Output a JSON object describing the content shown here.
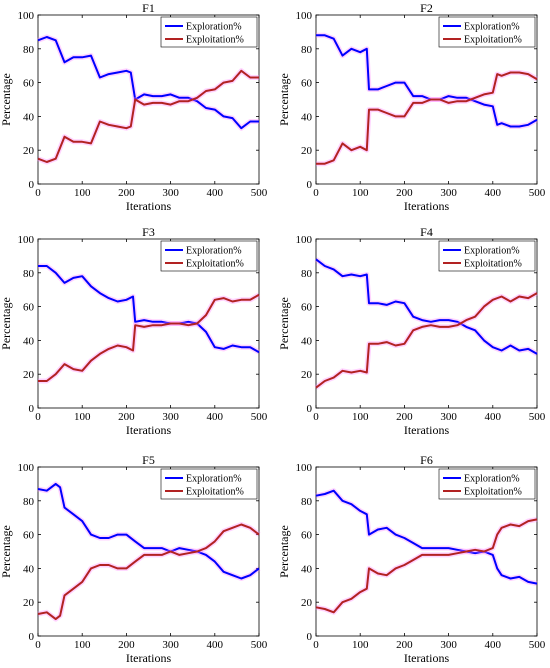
{
  "figure": {
    "colors": {
      "exploration": "#0000ff",
      "exploitation": "#b22222",
      "glow": "#ff80ff"
    }
  },
  "chart_data": [
    {
      "type": "line",
      "title": "F1",
      "xlabel": "Iterations",
      "ylabel": "Percentage",
      "xlim": [
        0,
        500
      ],
      "ylim": [
        0,
        100
      ],
      "xticks": [
        0,
        100,
        200,
        300,
        400,
        500
      ],
      "yticks": [
        0,
        20,
        40,
        60,
        80,
        100
      ],
      "legend": "top-right",
      "x": [
        0,
        20,
        40,
        60,
        80,
        100,
        120,
        140,
        160,
        180,
        200,
        210,
        220,
        240,
        260,
        280,
        300,
        320,
        340,
        360,
        380,
        400,
        420,
        440,
        460,
        480,
        500
      ],
      "series": [
        {
          "name": "Exploration%",
          "values": [
            85,
            87,
            85,
            72,
            75,
            75,
            76,
            63,
            65,
            66,
            67,
            66,
            50,
            53,
            52,
            52,
            53,
            51,
            51,
            49,
            45,
            44,
            40,
            39,
            33,
            37,
            37
          ]
        },
        {
          "name": "Exploitation%",
          "values": [
            15,
            13,
            15,
            28,
            25,
            25,
            24,
            37,
            35,
            34,
            33,
            34,
            50,
            47,
            48,
            48,
            47,
            49,
            49,
            51,
            55,
            56,
            60,
            61,
            67,
            63,
            63
          ]
        }
      ]
    },
    {
      "type": "line",
      "title": "F2",
      "xlabel": "Iterations",
      "ylabel": "Percentage",
      "xlim": [
        0,
        500
      ],
      "ylim": [
        0,
        100
      ],
      "xticks": [
        0,
        100,
        200,
        300,
        400,
        500
      ],
      "yticks": [
        0,
        20,
        40,
        60,
        80,
        100
      ],
      "legend": "top-right",
      "x": [
        0,
        20,
        40,
        60,
        80,
        100,
        115,
        120,
        140,
        160,
        180,
        200,
        220,
        240,
        260,
        280,
        300,
        320,
        340,
        360,
        380,
        400,
        410,
        420,
        440,
        460,
        480,
        500
      ],
      "series": [
        {
          "name": "Exploration%",
          "values": [
            88,
            88,
            86,
            76,
            80,
            78,
            80,
            56,
            56,
            58,
            60,
            60,
            52,
            52,
            50,
            50,
            52,
            51,
            51,
            49,
            47,
            46,
            35,
            36,
            34,
            34,
            35,
            38
          ]
        },
        {
          "name": "Exploitation%",
          "values": [
            12,
            12,
            14,
            24,
            20,
            22,
            20,
            44,
            44,
            42,
            40,
            40,
            48,
            48,
            50,
            50,
            48,
            49,
            49,
            51,
            53,
            54,
            65,
            64,
            66,
            66,
            65,
            62
          ]
        }
      ]
    },
    {
      "type": "line",
      "title": "F3",
      "xlabel": "Iterations",
      "ylabel": "Percentage",
      "xlim": [
        0,
        500
      ],
      "ylim": [
        0,
        100
      ],
      "xticks": [
        0,
        100,
        200,
        300,
        400,
        500
      ],
      "yticks": [
        0,
        20,
        40,
        60,
        80,
        100
      ],
      "legend": "top-right",
      "x": [
        0,
        20,
        40,
        60,
        80,
        100,
        120,
        140,
        160,
        180,
        200,
        215,
        220,
        240,
        260,
        280,
        300,
        320,
        340,
        360,
        380,
        400,
        420,
        440,
        460,
        480,
        500
      ],
      "series": [
        {
          "name": "Exploration%",
          "values": [
            84,
            84,
            80,
            74,
            77,
            78,
            72,
            68,
            65,
            63,
            64,
            66,
            51,
            52,
            51,
            51,
            50,
            50,
            51,
            50,
            45,
            36,
            35,
            37,
            36,
            36,
            33
          ]
        },
        {
          "name": "Exploitation%",
          "values": [
            16,
            16,
            20,
            26,
            23,
            22,
            28,
            32,
            35,
            37,
            36,
            34,
            49,
            48,
            49,
            49,
            50,
            50,
            49,
            50,
            55,
            64,
            65,
            63,
            64,
            64,
            67
          ]
        }
      ]
    },
    {
      "type": "line",
      "title": "F4",
      "xlabel": "Iterations",
      "ylabel": "Percentage",
      "xlim": [
        0,
        500
      ],
      "ylim": [
        0,
        100
      ],
      "xticks": [
        0,
        100,
        200,
        300,
        400,
        500
      ],
      "yticks": [
        0,
        20,
        40,
        60,
        80,
        100
      ],
      "legend": "top-right",
      "x": [
        0,
        20,
        40,
        60,
        80,
        100,
        115,
        120,
        140,
        160,
        180,
        200,
        220,
        240,
        260,
        280,
        300,
        320,
        340,
        360,
        380,
        400,
        420,
        440,
        460,
        480,
        500
      ],
      "series": [
        {
          "name": "Exploration%",
          "values": [
            88,
            84,
            82,
            78,
            79,
            78,
            79,
            62,
            62,
            61,
            63,
            62,
            54,
            52,
            51,
            52,
            52,
            51,
            48,
            46,
            40,
            36,
            34,
            37,
            34,
            35,
            32
          ]
        },
        {
          "name": "Exploitation%",
          "values": [
            12,
            16,
            18,
            22,
            21,
            22,
            21,
            38,
            38,
            39,
            37,
            38,
            46,
            48,
            49,
            48,
            48,
            49,
            52,
            54,
            60,
            64,
            66,
            63,
            66,
            65,
            68
          ]
        }
      ]
    },
    {
      "type": "line",
      "title": "F5",
      "xlabel": "Iterations",
      "ylabel": "Percentage",
      "xlim": [
        0,
        500
      ],
      "ylim": [
        0,
        100
      ],
      "xticks": [
        0,
        100,
        200,
        300,
        400,
        500
      ],
      "yticks": [
        0,
        20,
        40,
        60,
        80,
        100
      ],
      "legend": "top-right",
      "x": [
        0,
        20,
        40,
        50,
        60,
        80,
        100,
        120,
        140,
        160,
        180,
        200,
        220,
        240,
        260,
        280,
        300,
        320,
        340,
        360,
        380,
        400,
        420,
        440,
        460,
        480,
        500
      ],
      "series": [
        {
          "name": "Exploration%",
          "values": [
            87,
            86,
            90,
            88,
            76,
            72,
            68,
            60,
            58,
            58,
            60,
            60,
            56,
            52,
            52,
            52,
            50,
            52,
            51,
            50,
            48,
            44,
            38,
            36,
            34,
            36,
            40
          ]
        },
        {
          "name": "Exploitation%",
          "values": [
            13,
            14,
            10,
            12,
            24,
            28,
            32,
            40,
            42,
            42,
            40,
            40,
            44,
            48,
            48,
            48,
            50,
            48,
            49,
            50,
            52,
            56,
            62,
            64,
            66,
            64,
            60
          ]
        }
      ]
    },
    {
      "type": "line",
      "title": "F6",
      "xlabel": "Iterations",
      "ylabel": "Percentage",
      "xlim": [
        0,
        500
      ],
      "ylim": [
        0,
        100
      ],
      "xticks": [
        0,
        100,
        200,
        300,
        400,
        500
      ],
      "yticks": [
        0,
        20,
        40,
        60,
        80,
        100
      ],
      "legend": "top-right",
      "x": [
        0,
        20,
        40,
        60,
        80,
        100,
        115,
        120,
        140,
        160,
        180,
        200,
        220,
        240,
        260,
        280,
        300,
        320,
        340,
        360,
        380,
        400,
        410,
        420,
        440,
        460,
        480,
        500
      ],
      "series": [
        {
          "name": "Exploration%",
          "values": [
            83,
            84,
            86,
            80,
            78,
            74,
            72,
            60,
            63,
            64,
            60,
            58,
            55,
            52,
            52,
            52,
            52,
            51,
            50,
            49,
            50,
            48,
            40,
            36,
            34,
            35,
            32,
            31
          ]
        },
        {
          "name": "Exploitation%",
          "values": [
            17,
            16,
            14,
            20,
            22,
            26,
            28,
            40,
            37,
            36,
            40,
            42,
            45,
            48,
            48,
            48,
            48,
            49,
            50,
            51,
            50,
            52,
            60,
            64,
            66,
            65,
            68,
            69
          ]
        }
      ]
    }
  ]
}
